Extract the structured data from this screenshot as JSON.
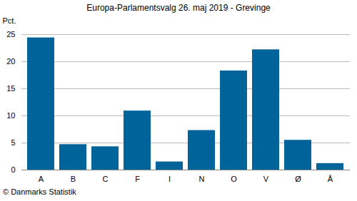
{
  "chart_data": {
    "type": "bar",
    "title": "Europa-Parlamentsvalg 26. maj 2019 - Grevinge",
    "y_label": "Pct.",
    "caption": "© Danmarks Statistik",
    "categories": [
      "A",
      "B",
      "C",
      "F",
      "I",
      "N",
      "O",
      "V",
      "Ø",
      "Å"
    ],
    "values": [
      24.4,
      4.7,
      4.3,
      10.9,
      1.5,
      7.3,
      18.3,
      22.2,
      5.5,
      1.2
    ],
    "color": "#00639a",
    "ylim": [
      0,
      25
    ],
    "yticks": [
      0,
      5,
      10,
      15,
      20,
      25
    ],
    "grid": true
  }
}
